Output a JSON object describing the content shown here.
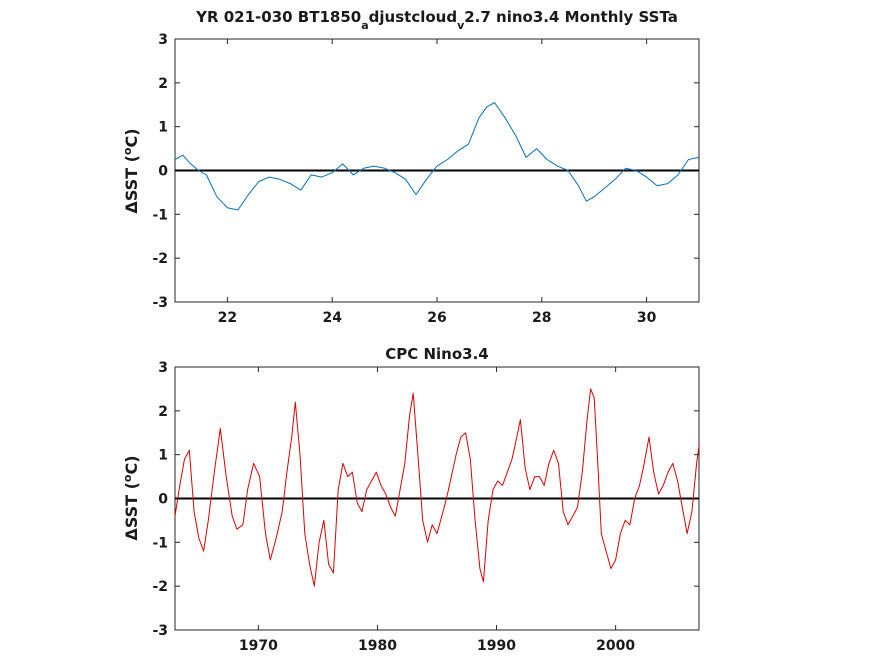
{
  "chart_data": [
    {
      "type": "line",
      "title_parts": [
        "YR 021-030 BT1850",
        "a",
        "djustcloud",
        "v",
        "2.7 nino3.4 Monthly SSTa"
      ],
      "ylabel_parts": [
        "ΔSST (",
        "o",
        "C)"
      ],
      "xlim": [
        21,
        31
      ],
      "ylim": [
        -3,
        3
      ],
      "xticks": [
        "22",
        "24",
        "26",
        "28",
        "30"
      ],
      "yticks": [
        "-3",
        "-2",
        "-1",
        "0",
        "1",
        "2",
        "3"
      ],
      "grid": false,
      "legend": "none",
      "zero_line": true,
      "series": [
        {
          "color": "#0072bd",
          "x": [
            21.0,
            21.15,
            21.3,
            21.45,
            21.6,
            21.8,
            22.0,
            22.2,
            22.4,
            22.6,
            22.8,
            23.0,
            23.2,
            23.4,
            23.6,
            23.8,
            24.0,
            24.2,
            24.4,
            24.6,
            24.8,
            25.0,
            25.2,
            25.4,
            25.6,
            25.8,
            26.0,
            26.2,
            26.4,
            26.6,
            26.8,
            26.95,
            27.1,
            27.3,
            27.5,
            27.7,
            27.9,
            28.1,
            28.3,
            28.5,
            28.7,
            28.85,
            29.0,
            29.2,
            29.4,
            29.6,
            29.8,
            30.0,
            30.2,
            30.4,
            30.6,
            30.8,
            31.0
          ],
          "y": [
            0.25,
            0.35,
            0.15,
            0.0,
            -0.1,
            -0.6,
            -0.85,
            -0.9,
            -0.55,
            -0.25,
            -0.15,
            -0.2,
            -0.3,
            -0.45,
            -0.1,
            -0.15,
            -0.05,
            0.15,
            -0.1,
            0.05,
            0.1,
            0.05,
            -0.05,
            -0.2,
            -0.55,
            -0.2,
            0.1,
            0.25,
            0.45,
            0.6,
            1.2,
            1.45,
            1.55,
            1.2,
            0.8,
            0.3,
            0.5,
            0.25,
            0.1,
            0.0,
            -0.35,
            -0.7,
            -0.6,
            -0.4,
            -0.2,
            0.05,
            0.0,
            -0.15,
            -0.35,
            -0.3,
            -0.1,
            0.25,
            0.3
          ]
        }
      ]
    },
    {
      "type": "line",
      "title": "CPC Nino3.4",
      "ylabel_parts": [
        "ΔSST (",
        "o",
        "C)"
      ],
      "xlim": [
        1963,
        2007
      ],
      "ylim": [
        -3,
        3
      ],
      "xticks": [
        "1970",
        "1980",
        "1990",
        "2000"
      ],
      "yticks": [
        "-3",
        "-2",
        "-1",
        "0",
        "1",
        "2",
        "3"
      ],
      "grid": false,
      "legend": "none",
      "zero_line": true,
      "series": [
        {
          "color": "#e00000",
          "x": [
            1963.0,
            1963.4,
            1963.8,
            1964.2,
            1964.6,
            1965.0,
            1965.4,
            1965.8,
            1966.3,
            1966.8,
            1967.3,
            1967.8,
            1968.2,
            1968.7,
            1969.1,
            1969.6,
            1970.1,
            1970.6,
            1971.0,
            1971.5,
            1972.0,
            1972.4,
            1972.8,
            1973.1,
            1973.5,
            1973.9,
            1974.3,
            1974.7,
            1975.1,
            1975.5,
            1975.9,
            1976.3,
            1976.7,
            1977.1,
            1977.5,
            1977.9,
            1978.3,
            1978.7,
            1979.1,
            1979.5,
            1979.9,
            1980.3,
            1980.7,
            1981.1,
            1981.5,
            1981.9,
            1982.3,
            1982.7,
            1983.0,
            1983.4,
            1983.8,
            1984.2,
            1984.6,
            1985.0,
            1985.4,
            1985.8,
            1986.2,
            1986.6,
            1987.0,
            1987.4,
            1987.8,
            1988.2,
            1988.6,
            1988.9,
            1989.3,
            1989.7,
            1990.1,
            1990.5,
            1990.9,
            1991.3,
            1991.7,
            1992.0,
            1992.4,
            1992.8,
            1993.2,
            1993.6,
            1994.0,
            1994.4,
            1994.8,
            1995.2,
            1995.6,
            1996.0,
            1996.4,
            1996.8,
            1997.2,
            1997.6,
            1997.9,
            1998.2,
            1998.5,
            1998.8,
            1999.2,
            1999.6,
            2000.0,
            2000.4,
            2000.8,
            2001.2,
            2001.6,
            2002.0,
            2002.4,
            2002.8,
            2003.2,
            2003.6,
            2004.0,
            2004.4,
            2004.8,
            2005.2,
            2005.6,
            2006.0,
            2006.4,
            2006.8,
            2007.0
          ],
          "y": [
            -0.4,
            0.3,
            0.9,
            1.1,
            -0.3,
            -0.9,
            -1.2,
            -0.5,
            0.6,
            1.6,
            0.5,
            -0.4,
            -0.7,
            -0.6,
            0.2,
            0.8,
            0.5,
            -0.8,
            -1.4,
            -0.9,
            -0.3,
            0.6,
            1.4,
            2.2,
            1.0,
            -0.8,
            -1.5,
            -2.0,
            -1.0,
            -0.5,
            -1.5,
            -1.7,
            0.2,
            0.8,
            0.5,
            0.6,
            -0.1,
            -0.3,
            0.2,
            0.4,
            0.6,
            0.3,
            0.1,
            -0.2,
            -0.4,
            0.2,
            0.8,
            1.9,
            2.4,
            1.0,
            -0.5,
            -1.0,
            -0.6,
            -0.8,
            -0.4,
            0.0,
            0.5,
            1.0,
            1.4,
            1.5,
            0.9,
            -0.5,
            -1.6,
            -1.9,
            -0.5,
            0.2,
            0.4,
            0.3,
            0.6,
            0.9,
            1.4,
            1.8,
            0.7,
            0.2,
            0.5,
            0.5,
            0.3,
            0.8,
            1.1,
            0.8,
            -0.3,
            -0.6,
            -0.4,
            -0.2,
            0.6,
            1.8,
            2.5,
            2.3,
            0.8,
            -0.8,
            -1.2,
            -1.6,
            -1.4,
            -0.8,
            -0.5,
            -0.6,
            0.0,
            0.3,
            0.8,
            1.4,
            0.6,
            0.1,
            0.3,
            0.6,
            0.8,
            0.4,
            -0.2,
            -0.8,
            -0.3,
            0.8,
            1.2
          ]
        }
      ]
    }
  ]
}
